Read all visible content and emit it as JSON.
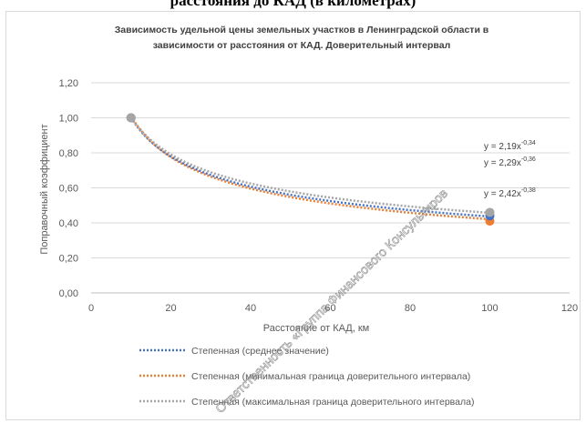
{
  "document": {
    "heading": "расстояния до КАД (в километрах)"
  },
  "chart_data": {
    "type": "scatter",
    "title_line1": "Зависимость удельной цены земельных участков в Ленинградской области в",
    "title_line2": "зависимости от расстояния от КАД. Доверительный интервал",
    "xlabel": "Расстояние от КАД, км",
    "ylabel": "Поправочный коэффициент",
    "xlim": [
      0,
      120
    ],
    "ylim": [
      0,
      1.2
    ],
    "x_ticks": [
      0,
      20,
      40,
      60,
      80,
      100,
      120
    ],
    "y_ticks": [
      "0,00",
      "0,20",
      "0,40",
      "0,60",
      "0,80",
      "1,00",
      "1,20"
    ],
    "grid": "horizontal",
    "legend_position": "bottom",
    "series": [
      {
        "name": "Степенная (среднее значение)",
        "color": "#4472c4",
        "points": [
          [
            10,
            1.0
          ],
          [
            100,
            0.44
          ]
        ],
        "trend_coef": 2.29,
        "trend_exp": -0.36,
        "equation": "y = 2,29x",
        "equation_exp": "-0,36"
      },
      {
        "name": "Степенная (минимальная граница доверительного интервала)",
        "color": "#ed7d31",
        "points": [
          [
            10,
            1.0
          ],
          [
            100,
            0.41
          ]
        ],
        "trend_coef": 2.42,
        "trend_exp": -0.38,
        "equation": "y = 2,42x",
        "equation_exp": "-0,38"
      },
      {
        "name": "Степенная (максимальная граница доверительного интервала)",
        "color": "#a5a5a5",
        "points": [
          [
            10,
            1.0
          ],
          [
            100,
            0.46
          ]
        ],
        "trend_coef": 2.19,
        "trend_exp": -0.34,
        "equation": "y = 2,19x",
        "equation_exp": "-0,34"
      }
    ]
  },
  "watermark": {
    "line1": "Ответственность «Группа Финансового Консультиров"
  }
}
